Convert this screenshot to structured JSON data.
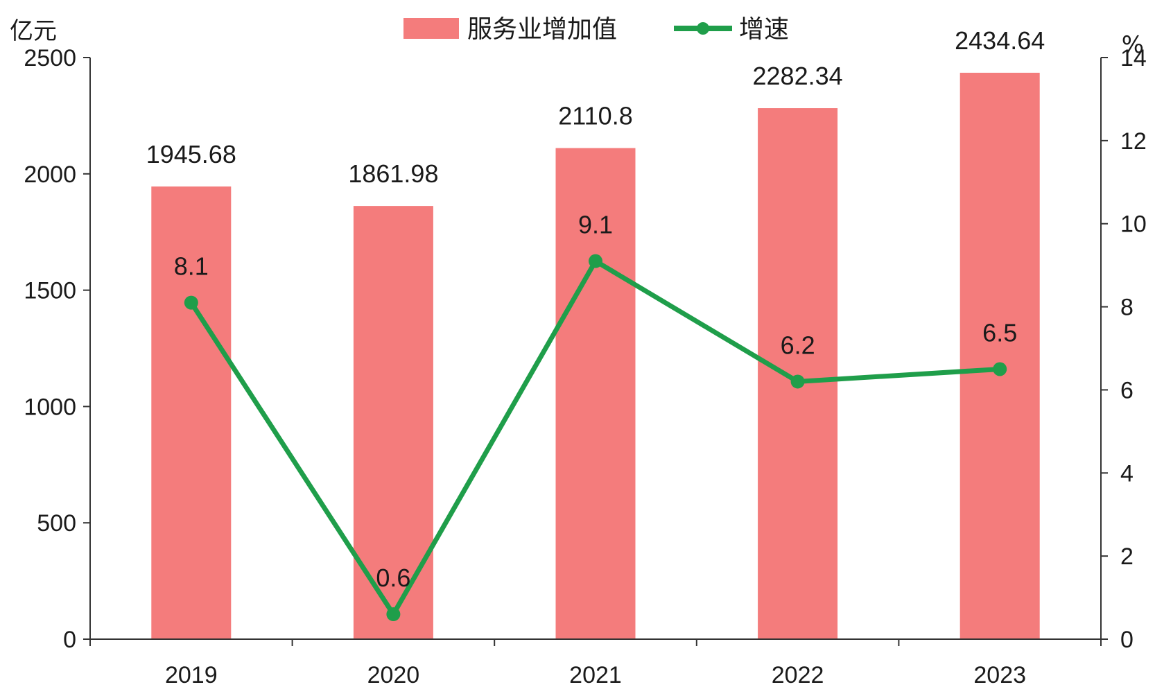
{
  "chart_data": {
    "type": "bar",
    "categories": [
      "2019",
      "2020",
      "2021",
      "2022",
      "2023"
    ],
    "left_axis": {
      "unit": "亿元",
      "range": [
        0,
        2500
      ],
      "ticks": [
        "0",
        "500",
        "1000",
        "1500",
        "2000",
        "2500"
      ]
    },
    "right_axis": {
      "unit": "%",
      "range": [
        0,
        14
      ],
      "ticks": [
        "0",
        "2",
        "4",
        "6",
        "8",
        "10",
        "12",
        "14"
      ]
    },
    "legend_position": "top-center",
    "grid": false,
    "series": [
      {
        "name": "服务业增加值",
        "type": "bar",
        "axis": "left",
        "color": "#f47c7c",
        "values": [
          1945.68,
          1861.98,
          2110.8,
          2282.34,
          2434.64
        ],
        "labels": [
          "1945.68",
          "1861.98",
          "2110.8",
          "2282.34",
          "2434.64"
        ]
      },
      {
        "name": "增速",
        "type": "line",
        "axis": "right",
        "color": "#1f9e4a",
        "values": [
          8.1,
          0.6,
          9.1,
          6.2,
          6.5
        ],
        "labels": [
          "8.1",
          "0.6",
          "9.1",
          "6.2",
          "6.5"
        ]
      }
    ]
  }
}
